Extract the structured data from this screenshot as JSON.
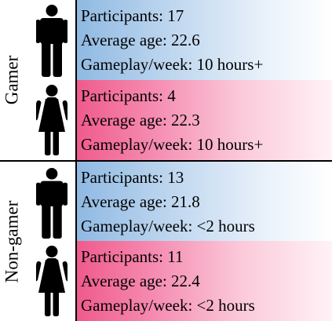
{
  "groups": [
    {
      "label": "Gamer",
      "rows": [
        {
          "gender_icon": "male-icon",
          "participants": "Participants: 17",
          "age": "Average age: 22.6",
          "gameplay": "Gameplay/week: 10 hours+",
          "color": "#8fb9e2"
        },
        {
          "gender_icon": "female-icon",
          "participants": "Participants: 4",
          "age": "Average age: 22.3",
          "gameplay": "Gameplay/week: 10 hours+",
          "color": "#ef5a8c"
        }
      ]
    },
    {
      "label": "Non-gamer",
      "rows": [
        {
          "gender_icon": "male-icon",
          "participants": "Participants: 13",
          "age": "Average age: 21.8",
          "gameplay": "Gameplay/week: <2 hours",
          "color": "#8fb9e2"
        },
        {
          "gender_icon": "female-icon",
          "participants": "Participants: 11",
          "age": "Average age: 22.4",
          "gameplay": "Gameplay/week: <2 hours",
          "color": "#ef5a8c"
        }
      ]
    }
  ]
}
